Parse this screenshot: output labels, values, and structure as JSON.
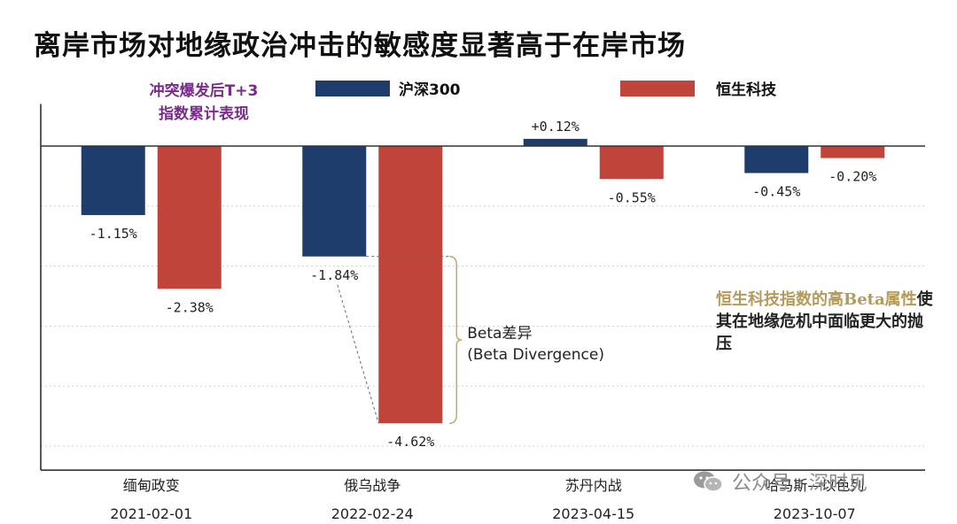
{
  "title": "离岸市场对地缘政治冲击的敏感度显著高于在岸市场",
  "subtitle_line1": "冲突爆发后T+3",
  "subtitle_line2": "指数累计表现",
  "colors": {
    "csi300": "#1f3d6c",
    "hstech": "#c0443a",
    "accent": "#b59a5a",
    "subtitle": "#7a2a8a"
  },
  "chart_data": {
    "type": "bar",
    "categories": [
      "缅甸政变",
      "俄乌战争",
      "苏丹内战",
      "哈马斯—以色列"
    ],
    "dates": [
      "2021-02-01",
      "2022-02-24",
      "2023-04-15",
      "2023-10-07"
    ],
    "series": [
      {
        "name": "沪深300",
        "values": [
          -1.15,
          -1.84,
          0.12,
          -0.45
        ],
        "labels": [
          "-1.15%",
          "-1.84%",
          "+0.12%",
          "-0.45%"
        ]
      },
      {
        "name": "恒生科技",
        "values": [
          -2.38,
          -4.62,
          -0.55,
          -0.2
        ],
        "labels": [
          "-2.38%",
          "-4.62%",
          "-0.55%",
          "-0.20%"
        ]
      }
    ],
    "ylim": [
      -5.4,
      0.7
    ],
    "grid": true,
    "legend": "top"
  },
  "bracket_line1": "Beta差异",
  "bracket_line2": "(Beta Divergence)",
  "annotation_highlight": "恒生科技指数的高Beta属性",
  "annotation_rest": "使其在地缘危机中面临更大的抛压",
  "watermark": "公众号 · 深时见"
}
